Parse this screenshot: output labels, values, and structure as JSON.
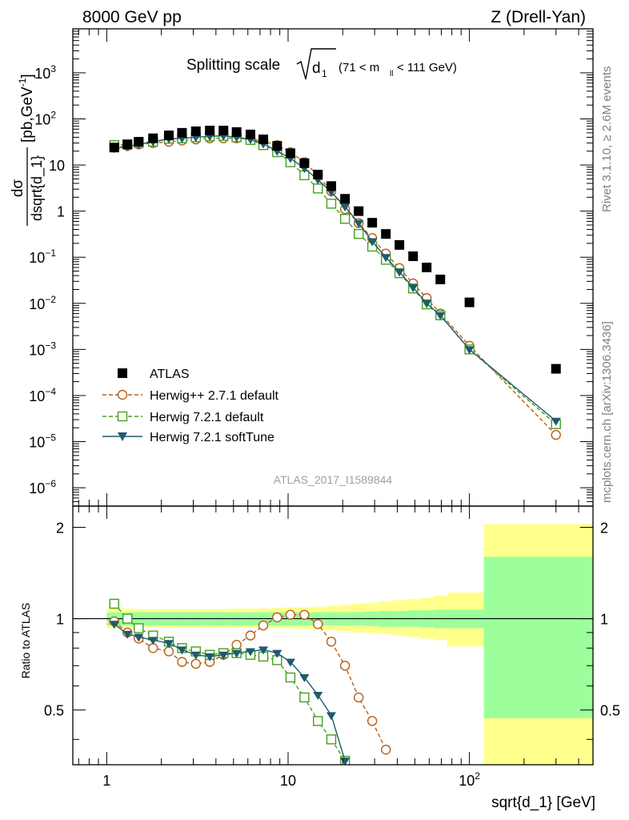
{
  "header": {
    "energy_label": "8000 GeV pp",
    "process_label": "Z (Drell-Yan)"
  },
  "side_labels": {
    "rivet": "Rivet 3.1.10, ≥ 2.6M events",
    "source": "mcplots.cern.ch [arXiv:1306.3436]"
  },
  "watermark": "ATLAS_2017_I1589844",
  "colors": {
    "atlas": "#000000",
    "herwigpp": "#b45f1a",
    "herwig721": "#44a01e",
    "softtune": "#1f5a6e",
    "band_inner": "#9cff9c",
    "band_outer": "#ffff8c"
  },
  "chart_data": [
    {
      "type": "scatter",
      "title_main": "Splitting scale",
      "title_sqrt": "d",
      "title_sub": "1",
      "title_range_a": "(71 < m",
      "title_range_sub": "ll",
      "title_range_b": " < 111 GeV)",
      "ylabel_num": "dσ",
      "ylabel_den": "dsqrt{d_1}",
      "ylabel_unit": "[pb,GeV",
      "ylabel_unit_sup": "-1",
      "ylabel_unit_close": "]",
      "yscale": "log",
      "xscale": "log",
      "xlim": [
        0.65,
        480
      ],
      "ylim": [
        4e-07,
        9000
      ],
      "y_ticks": [
        {
          "value": 1e-06,
          "base": "10",
          "exp": "−6"
        },
        {
          "value": 1e-05,
          "base": "10",
          "exp": "−5"
        },
        {
          "value": 0.0001,
          "base": "10",
          "exp": "−4"
        },
        {
          "value": 0.001,
          "base": "10",
          "exp": "−3"
        },
        {
          "value": 0.01,
          "base": "10",
          "exp": "−2"
        },
        {
          "value": 0.1,
          "base": "10",
          "exp": "−1"
        },
        {
          "value": 1,
          "base": "1",
          "exp": ""
        },
        {
          "value": 10,
          "base": "10",
          "exp": ""
        },
        {
          "value": 100,
          "base": "10",
          "exp": "2"
        },
        {
          "value": 1000,
          "base": "10",
          "exp": "3"
        }
      ],
      "legend_position": "lower-left",
      "series": [
        {
          "name": "ATLAS",
          "marker": "square",
          "x": [
            1.1,
            1.3,
            1.5,
            1.8,
            2.2,
            2.6,
            3.1,
            3.7,
            4.4,
            5.2,
            6.2,
            7.3,
            8.7,
            10.3,
            12.3,
            14.6,
            17.3,
            20.6,
            24.5,
            29.1,
            34.6,
            41.1,
            48.9,
            58.1,
            69.1,
            100,
            300
          ],
          "y": [
            24,
            28,
            32,
            38,
            44,
            50,
            54,
            56,
            56,
            52,
            46,
            36,
            26,
            18,
            11,
            6.2,
            3.5,
            1.85,
            1.0,
            0.56,
            0.32,
            0.185,
            0.105,
            0.06,
            0.033,
            0.0105,
            0.00038
          ]
        },
        {
          "name": "Herwig++ 2.7.1 default",
          "marker": "open-circle",
          "line": "dashed",
          "x": [
            1.1,
            1.3,
            1.5,
            1.8,
            2.2,
            2.6,
            3.1,
            3.7,
            4.4,
            5.2,
            6.2,
            7.3,
            8.7,
            10.3,
            12.3,
            14.6,
            17.3,
            20.6,
            24.5,
            29.1,
            34.6,
            41.1,
            48.9,
            58.1,
            69.1,
            100,
            300
          ],
          "y": [
            24,
            26,
            28,
            30,
            32,
            34,
            36,
            38,
            38,
            38,
            37,
            33,
            27,
            19,
            11.5,
            6.0,
            2.7,
            1.1,
            0.55,
            0.26,
            0.12,
            0.058,
            0.027,
            0.013,
            0.006,
            0.0012,
            1.4e-05
          ]
        },
        {
          "name": "Herwig 7.2.1 default",
          "marker": "open-square",
          "line": "dashed",
          "x": [
            1.1,
            1.3,
            1.5,
            1.8,
            2.2,
            2.6,
            3.1,
            3.7,
            4.4,
            5.2,
            6.2,
            7.3,
            8.7,
            10.3,
            12.3,
            14.6,
            17.3,
            20.6,
            24.5,
            29.1,
            34.6,
            41.1,
            48.9,
            58.1,
            69.1,
            100,
            300
          ],
          "y": [
            27,
            28,
            30,
            32,
            37,
            38,
            40,
            42,
            43,
            40,
            35,
            27,
            19,
            11.5,
            6.0,
            3.1,
            1.45,
            0.68,
            0.32,
            0.17,
            0.088,
            0.045,
            0.021,
            0.0095,
            0.0055,
            0.001,
            2.4e-05
          ]
        },
        {
          "name": "Herwig 7.2.1 softTune",
          "marker": "filled-triangle-down",
          "line": "solid",
          "x": [
            1.1,
            1.3,
            1.5,
            1.8,
            2.2,
            2.6,
            3.1,
            3.7,
            4.4,
            5.2,
            6.2,
            7.3,
            8.7,
            10.3,
            12.3,
            14.6,
            17.3,
            20.6,
            24.5,
            29.1,
            34.6,
            41.1,
            48.9,
            58.1,
            69.1,
            100,
            300
          ],
          "y": [
            23,
            25,
            28,
            32,
            37,
            38,
            40,
            42,
            43,
            40,
            36,
            29,
            20,
            14,
            8.5,
            4.8,
            2.6,
            1.25,
            0.55,
            0.22,
            0.1,
            0.048,
            0.022,
            0.01,
            0.0055,
            0.001,
            2.8e-05
          ]
        }
      ]
    },
    {
      "type": "scatter",
      "ylabel": "Ratio to ATLAS",
      "xlabel": "sqrt{d_1} [GeV]",
      "yscale": "log",
      "xscale": "log",
      "xlim": [
        0.65,
        480
      ],
      "ylim": [
        0.33,
        2.35
      ],
      "y_ticks": [
        {
          "value": 0.5,
          "label": "0.5"
        },
        {
          "value": 1,
          "label": "1"
        },
        {
          "value": 2,
          "label": "2"
        }
      ],
      "x_ticks": [
        {
          "value": 1,
          "base": "1",
          "exp": ""
        },
        {
          "value": 10,
          "base": "10",
          "exp": ""
        },
        {
          "value": 100,
          "base": "10",
          "exp": "2"
        }
      ],
      "band_bins": {
        "x_edges": [
          1.0,
          1.2,
          1.4,
          1.65,
          2.0,
          2.4,
          2.85,
          3.4,
          4.0,
          4.8,
          5.7,
          6.8,
          8.0,
          9.5,
          11.3,
          13.4,
          16.0,
          19.0,
          22.5,
          26.7,
          31.8,
          37.8,
          45.0,
          53.4,
          63.5,
          75.5,
          120,
          480
        ],
        "inner_low": [
          0.95,
          0.95,
          0.95,
          0.95,
          0.95,
          0.95,
          0.95,
          0.95,
          0.95,
          0.95,
          0.95,
          0.95,
          0.95,
          0.95,
          0.95,
          0.95,
          0.95,
          0.95,
          0.95,
          0.945,
          0.94,
          0.94,
          0.94,
          0.935,
          0.93,
          0.93,
          0.47
        ],
        "inner_high": [
          1.05,
          1.05,
          1.05,
          1.05,
          1.05,
          1.05,
          1.05,
          1.05,
          1.05,
          1.05,
          1.05,
          1.05,
          1.05,
          1.05,
          1.05,
          1.05,
          1.05,
          1.05,
          1.05,
          1.055,
          1.06,
          1.06,
          1.065,
          1.065,
          1.07,
          1.07,
          1.6
        ],
        "outer_low": [
          0.93,
          0.93,
          0.935,
          0.935,
          0.935,
          0.935,
          0.935,
          0.935,
          0.935,
          0.935,
          0.935,
          0.93,
          0.93,
          0.93,
          0.925,
          0.92,
          0.915,
          0.91,
          0.9,
          0.895,
          0.89,
          0.88,
          0.87,
          0.86,
          0.85,
          0.81,
          0.33
        ],
        "outer_high": [
          1.08,
          1.08,
          1.075,
          1.075,
          1.075,
          1.075,
          1.075,
          1.075,
          1.075,
          1.08,
          1.08,
          1.08,
          1.085,
          1.09,
          1.09,
          1.095,
          1.1,
          1.11,
          1.12,
          1.13,
          1.14,
          1.15,
          1.16,
          1.17,
          1.19,
          1.22,
          2.05
        ]
      },
      "series": [
        {
          "name": "Herwig++ 2.7.1 default",
          "x": [
            1.1,
            1.3,
            1.5,
            1.8,
            2.2,
            2.6,
            3.1,
            3.7,
            4.4,
            5.2,
            6.2,
            7.3,
            8.7,
            10.3,
            12.3,
            14.6,
            17.3,
            20.6,
            24.5,
            29.1,
            34.6
          ],
          "y": [
            0.98,
            0.9,
            0.86,
            0.8,
            0.78,
            0.72,
            0.71,
            0.72,
            0.76,
            0.82,
            0.88,
            0.95,
            1.01,
            1.03,
            1.03,
            0.96,
            0.84,
            0.7,
            0.55,
            0.46,
            0.37
          ]
        },
        {
          "name": "Herwig 7.2.1 default",
          "x": [
            1.1,
            1.3,
            1.5,
            1.8,
            2.2,
            2.6,
            3.1,
            3.7,
            4.4,
            5.2,
            6.2,
            7.3,
            8.7,
            10.3,
            12.3,
            14.6,
            17.3,
            20.6
          ],
          "y": [
            1.12,
            1.0,
            0.93,
            0.88,
            0.84,
            0.8,
            0.78,
            0.76,
            0.77,
            0.77,
            0.76,
            0.75,
            0.73,
            0.64,
            0.55,
            0.46,
            0.4,
            0.34
          ]
        },
        {
          "name": "Herwig 7.2.1 softTune",
          "x": [
            1.1,
            1.3,
            1.5,
            1.8,
            2.2,
            2.6,
            3.1,
            3.7,
            4.4,
            5.2,
            6.2,
            7.3,
            8.7,
            10.3,
            12.3,
            14.6,
            17.3,
            20.6
          ],
          "y": [
            0.96,
            0.89,
            0.87,
            0.85,
            0.83,
            0.79,
            0.76,
            0.75,
            0.76,
            0.77,
            0.78,
            0.79,
            0.77,
            0.72,
            0.64,
            0.56,
            0.48,
            0.34
          ]
        }
      ]
    }
  ]
}
